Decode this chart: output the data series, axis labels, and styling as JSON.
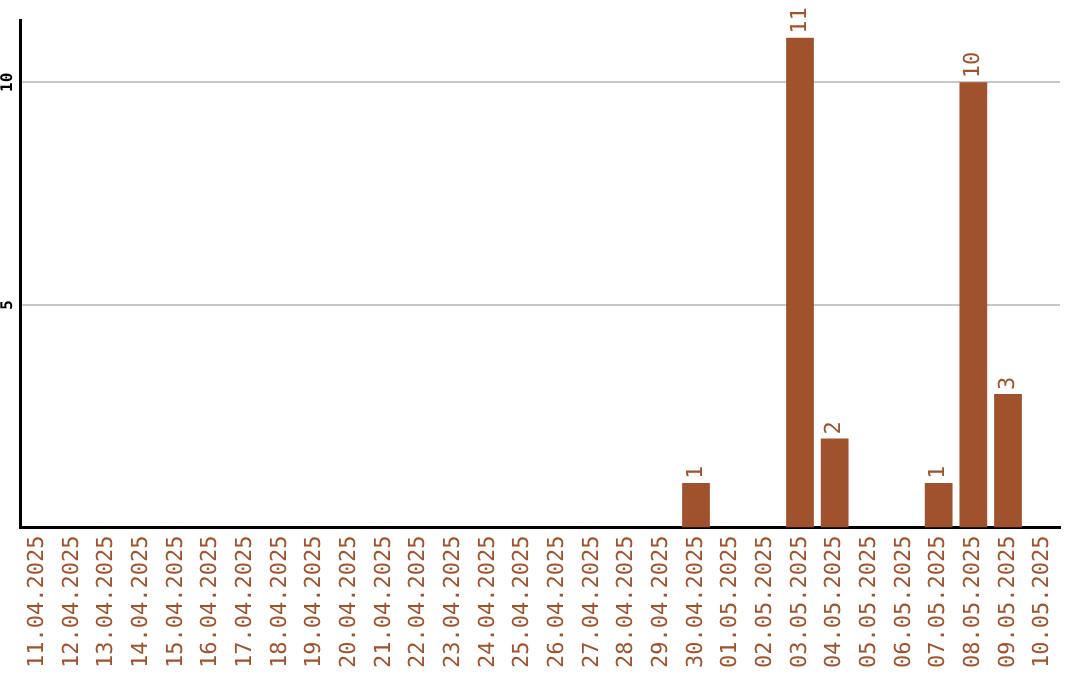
{
  "chart_data": {
    "type": "bar",
    "categories": [
      "11.04.2025",
      "12.04.2025",
      "13.04.2025",
      "14.04.2025",
      "15.04.2025",
      "16.04.2025",
      "17.04.2025",
      "18.04.2025",
      "19.04.2025",
      "20.04.2025",
      "21.04.2025",
      "22.04.2025",
      "23.04.2025",
      "24.04.2025",
      "25.04.2025",
      "26.04.2025",
      "27.04.2025",
      "28.04.2025",
      "29.04.2025",
      "30.04.2025",
      "01.05.2025",
      "02.05.2025",
      "03.05.2025",
      "04.05.2025",
      "05.05.2025",
      "06.05.2025",
      "07.05.2025",
      "08.05.2025",
      "09.05.2025",
      "10.05.2025"
    ],
    "values": [
      0,
      0,
      0,
      0,
      0,
      0,
      0,
      0,
      0,
      0,
      0,
      0,
      0,
      0,
      0,
      0,
      0,
      0,
      0,
      1,
      0,
      0,
      11,
      2,
      0,
      0,
      1,
      10,
      3,
      0
    ],
    "value_labels": [
      null,
      null,
      null,
      null,
      null,
      null,
      null,
      null,
      null,
      null,
      null,
      null,
      null,
      null,
      null,
      null,
      null,
      null,
      null,
      "1",
      null,
      null,
      "11",
      "2",
      null,
      null,
      "1",
      "10",
      "3",
      null
    ],
    "color": "#a0522d",
    "ylim": [
      0,
      11.4
    ],
    "yticks": [
      5,
      10
    ],
    "grid": "y",
    "legend": false
  }
}
